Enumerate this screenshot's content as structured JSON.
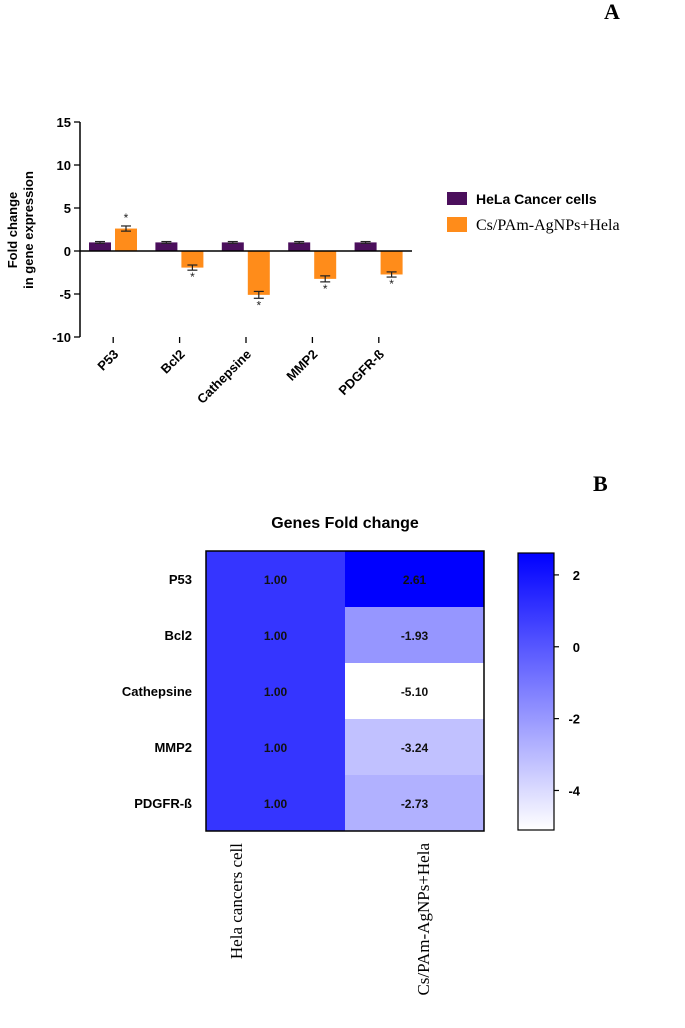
{
  "panel_a": {
    "label": "A",
    "chart_data": {
      "type": "bar",
      "categories": [
        "P53",
        "Bcl2",
        "Cathepsine",
        "MMP2",
        "PDGFR-ß"
      ],
      "series": [
        {
          "name": "HeLa Cancer cells",
          "color": "#4b0f5c",
          "values": [
            1.0,
            1.0,
            1.0,
            1.0,
            1.0
          ],
          "errors": [
            0.1,
            0.1,
            0.1,
            0.1,
            0.1
          ],
          "significance": [
            "",
            "",
            "",
            "",
            ""
          ]
        },
        {
          "name": "Cs/PAm-AgNPs+Hela",
          "color": "#ff8c1a",
          "values": [
            2.61,
            -1.93,
            -5.1,
            -3.24,
            -2.73
          ],
          "errors": [
            0.3,
            0.3,
            0.4,
            0.35,
            0.3
          ],
          "significance": [
            "*",
            "*",
            "*",
            "*",
            "*"
          ]
        }
      ],
      "ylabel": "Fold change in gene expression",
      "ylabel_lines": [
        "Fold change",
        "in gene expression"
      ],
      "xlabel": "",
      "ylim": [
        -10,
        15
      ],
      "yticks": [
        15,
        10,
        5,
        0,
        -5,
        -10
      ],
      "legend": "right"
    }
  },
  "panel_b": {
    "label": "B",
    "chart_data": {
      "type": "heatmap",
      "title": "Genes Fold change",
      "rows": [
        "P53",
        "Bcl2",
        "Cathepsine",
        "MMP2",
        "PDGFR-ß"
      ],
      "columns": [
        "Hela cancers cell",
        "Cs/PAm-AgNPs+Hela"
      ],
      "values": [
        [
          1.0,
          2.61
        ],
        [
          1.0,
          -1.93
        ],
        [
          1.0,
          -5.1
        ],
        [
          1.0,
          -3.24
        ],
        [
          1.0,
          -2.73
        ]
      ],
      "value_labels": [
        [
          "1.00",
          "2.61"
        ],
        [
          "1.00",
          "-1.93"
        ],
        [
          "1.00",
          "-5.10"
        ],
        [
          "1.00",
          "-3.24"
        ],
        [
          "1.00",
          "-2.73"
        ]
      ],
      "colorbar_range": [
        -5.1,
        2.61
      ],
      "colorbar_ticks": [
        2,
        0,
        -2,
        -4
      ],
      "color_low": "#ffffff",
      "color_high": "#0000ff"
    }
  }
}
